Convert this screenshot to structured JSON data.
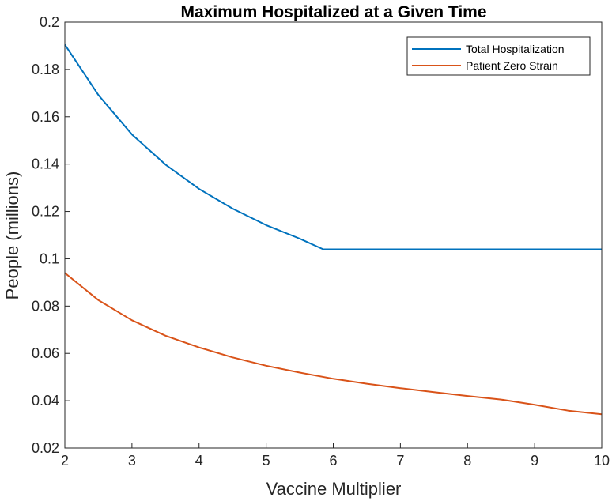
{
  "chart_data": {
    "type": "line",
    "title": "Maximum Hospitalized at a Given Time",
    "xlabel": "Vaccine Multiplier",
    "ylabel": "People (millions)",
    "xlim": [
      2,
      10
    ],
    "ylim": [
      0.02,
      0.2
    ],
    "x_ticks": [
      "2",
      "3",
      "4",
      "5",
      "6",
      "7",
      "8",
      "9",
      "10"
    ],
    "y_ticks": [
      "0.02",
      "0.04",
      "0.06",
      "0.08",
      "0.1",
      "0.12",
      "0.14",
      "0.16",
      "0.18",
      "0.2"
    ],
    "grid": false,
    "legend_position": "top-right",
    "series": [
      {
        "name": "Total Hospitalization",
        "color": "#0072BD",
        "x": [
          2.0,
          2.5,
          3.0,
          3.5,
          4.0,
          4.5,
          5.0,
          5.5,
          5.85,
          6.0,
          7.0,
          8.0,
          9.0,
          10.0
        ],
        "y": [
          0.1905,
          0.1692,
          0.1525,
          0.1398,
          0.1295,
          0.1212,
          0.1142,
          0.1085,
          0.104,
          0.104,
          0.104,
          0.104,
          0.104,
          0.104
        ]
      },
      {
        "name": "Patient Zero Strain",
        "color": "#D95319",
        "x": [
          2.0,
          2.5,
          3.0,
          3.5,
          4.0,
          4.5,
          5.0,
          5.5,
          6.0,
          6.5,
          7.0,
          7.5,
          8.0,
          8.5,
          9.0,
          9.5,
          10.0
        ],
        "y": [
          0.094,
          0.0825,
          0.074,
          0.0675,
          0.0625,
          0.0583,
          0.0548,
          0.0519,
          0.0493,
          0.0472,
          0.0453,
          0.0436,
          0.042,
          0.0405,
          0.0383,
          0.0358,
          0.0343
        ]
      }
    ]
  }
}
